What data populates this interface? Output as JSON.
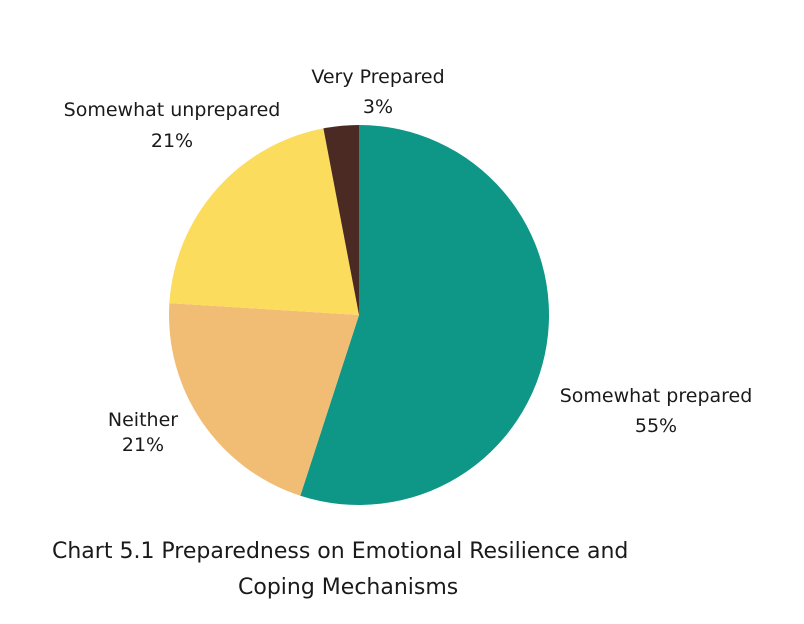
{
  "chart_data": {
    "type": "pie",
    "title_lines": [
      "Chart 5.1  Preparedness on Emotional Resilience and",
      "Coping Mechanisms"
    ],
    "slices": [
      {
        "label": "Somewhat prepared",
        "value_label": "55%",
        "value": 55,
        "color": "#0e9686"
      },
      {
        "label": "Neither",
        "value_label": "21%",
        "value": 21,
        "color": "#f1bd74"
      },
      {
        "label": "Somewhat unprepared",
        "value_label": "21%",
        "value": 21,
        "color": "#fcdc5c"
      },
      {
        "label": "Very Prepared",
        "value_label": "3%",
        "value": 3,
        "color": "#4a2a22"
      }
    ]
  }
}
